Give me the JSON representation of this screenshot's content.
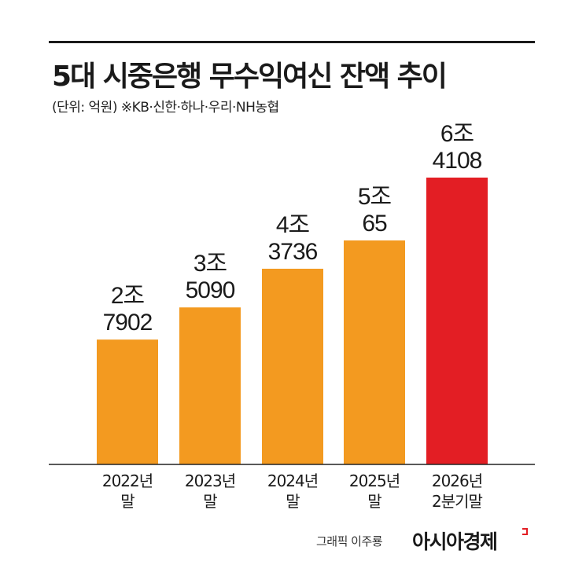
{
  "header": {
    "title": "5대 시중은행 무수익여신 잔액 추이",
    "subtitle": "(단위: 억원) ※KB·신한·하나·우리·NH농협"
  },
  "footer": {
    "credit": "그래픽 이주룡",
    "brand": "아시아경제"
  },
  "colors": {
    "bar": "#f39a20",
    "highlight": "#e31e24",
    "text": "#1a1a1a",
    "baseline": "#222222"
  },
  "chart_data": {
    "type": "bar",
    "categories": [
      "2022년 말",
      "2023년 말",
      "2024년 말",
      "2025년 말",
      "2026년 2분기말"
    ],
    "category_lines": [
      [
        "2022년",
        "말"
      ],
      [
        "2023년",
        "말"
      ],
      [
        "2024년",
        "말"
      ],
      [
        "2025년",
        "말"
      ],
      [
        "2026년",
        "2분기말"
      ]
    ],
    "values": [
      27902,
      35090,
      43736,
      50065,
      64108
    ],
    "value_labels": [
      [
        "2조",
        "7902"
      ],
      [
        "3조",
        "5090"
      ],
      [
        "4조",
        "3736"
      ],
      [
        "5조",
        "65"
      ],
      [
        "6조",
        "4108"
      ]
    ],
    "highlight_index": 4,
    "title": "5대 시중은행 무수익여신 잔액 추이",
    "unit": "억원",
    "xlabel": "",
    "ylabel": "",
    "ylim": [
      0,
      64108
    ],
    "grid": false,
    "legend": "none"
  }
}
